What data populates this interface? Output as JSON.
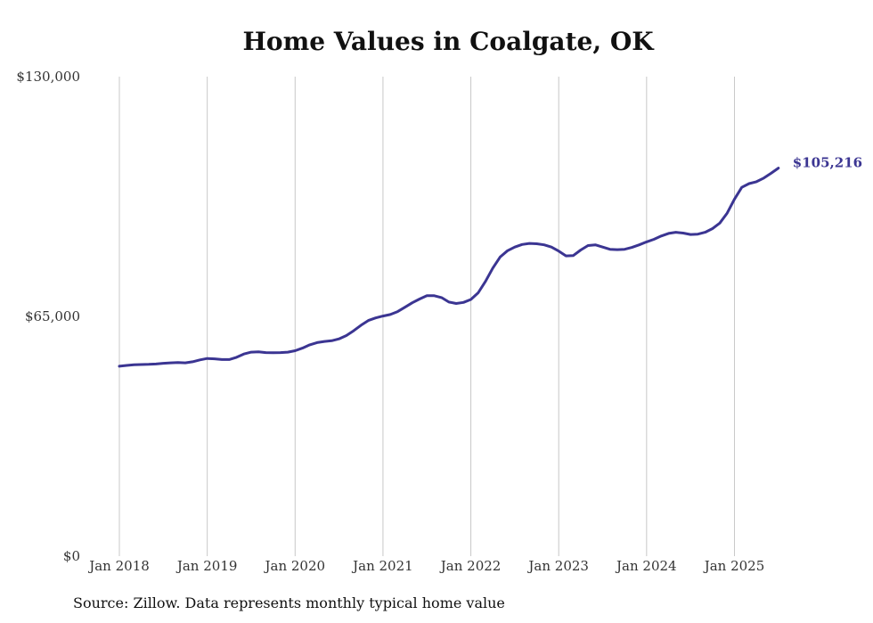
{
  "title": "Home Values in Coalgate, OK",
  "source": "Source: Zillow. Data represents monthly typical home value",
  "colors": {
    "line": "#3b3592",
    "grid": "#c8c8c8",
    "text": "#333333"
  },
  "chart_data": {
    "type": "line",
    "title": "Home Values in Coalgate, OK",
    "xlabel": "",
    "ylabel": "",
    "ylim": [
      0,
      130000
    ],
    "y_ticks": [
      {
        "value": 0,
        "label": "$0"
      },
      {
        "value": 65000,
        "label": "$65,000"
      },
      {
        "value": 130000,
        "label": "$130,000"
      }
    ],
    "x_ticks": [
      {
        "value": "2018-01",
        "label": "Jan 2018"
      },
      {
        "value": "2019-01",
        "label": "Jan 2019"
      },
      {
        "value": "2020-01",
        "label": "Jan 2020"
      },
      {
        "value": "2021-01",
        "label": "Jan 2021"
      },
      {
        "value": "2022-01",
        "label": "Jan 2022"
      },
      {
        "value": "2023-01",
        "label": "Jan 2023"
      },
      {
        "value": "2024-01",
        "label": "Jan 2024"
      },
      {
        "value": "2025-01",
        "label": "Jan 2025"
      }
    ],
    "grid": "vertical",
    "end_label": "$105,216",
    "series": [
      {
        "x": [
          "2018-01",
          "2018-02",
          "2018-03",
          "2018-04",
          "2018-05",
          "2018-06",
          "2018-07",
          "2018-08",
          "2018-09",
          "2018-10",
          "2018-11",
          "2018-12",
          "2019-01",
          "2019-02",
          "2019-03",
          "2019-04",
          "2019-05",
          "2019-06",
          "2019-07",
          "2019-08",
          "2019-09",
          "2019-10",
          "2019-11",
          "2019-12",
          "2020-01",
          "2020-02",
          "2020-03",
          "2020-04",
          "2020-05",
          "2020-06",
          "2020-07",
          "2020-08",
          "2020-09",
          "2020-10",
          "2020-11",
          "2020-12",
          "2021-01",
          "2021-02",
          "2021-03",
          "2021-04",
          "2021-05",
          "2021-06",
          "2021-07",
          "2021-08",
          "2021-09",
          "2021-10",
          "2021-11",
          "2021-12",
          "2022-01",
          "2022-02",
          "2022-03",
          "2022-04",
          "2022-05",
          "2022-06",
          "2022-07",
          "2022-08",
          "2022-09",
          "2022-10",
          "2022-11",
          "2022-12",
          "2023-01",
          "2023-02",
          "2023-03",
          "2023-04",
          "2023-05",
          "2023-06",
          "2023-07",
          "2023-08",
          "2023-09",
          "2023-10",
          "2023-11",
          "2023-12",
          "2024-01",
          "2024-02",
          "2024-03",
          "2024-04",
          "2024-05",
          "2024-06",
          "2024-07",
          "2024-08",
          "2024-09",
          "2024-10",
          "2024-11",
          "2024-12",
          "2025-01",
          "2025-02",
          "2025-03",
          "2025-04",
          "2025-05",
          "2025-06",
          "2025-07"
        ],
        "values": [
          51500,
          51700,
          51900,
          51950,
          52000,
          52100,
          52300,
          52400,
          52500,
          52400,
          52700,
          53200,
          53600,
          53500,
          53300,
          53300,
          53900,
          54800,
          55300,
          55400,
          55200,
          55150,
          55200,
          55300,
          55700,
          56400,
          57300,
          57900,
          58200,
          58400,
          58900,
          59800,
          61100,
          62600,
          63900,
          64600,
          65100,
          65500,
          66300,
          67500,
          68700,
          69700,
          70600,
          70600,
          70100,
          68900,
          68500,
          68800,
          69600,
          71400,
          74500,
          78100,
          81100,
          82800,
          83800,
          84500,
          84800,
          84700,
          84400,
          83800,
          82700,
          81400,
          81500,
          83000,
          84200,
          84400,
          83800,
          83200,
          83100,
          83200,
          83700,
          84400,
          85200,
          85900,
          86800,
          87500,
          87800,
          87600,
          87200,
          87300,
          87800,
          88800,
          90300,
          93000,
          96800,
          100000,
          101000,
          101500,
          102500,
          103800,
          105216
        ]
      }
    ]
  }
}
